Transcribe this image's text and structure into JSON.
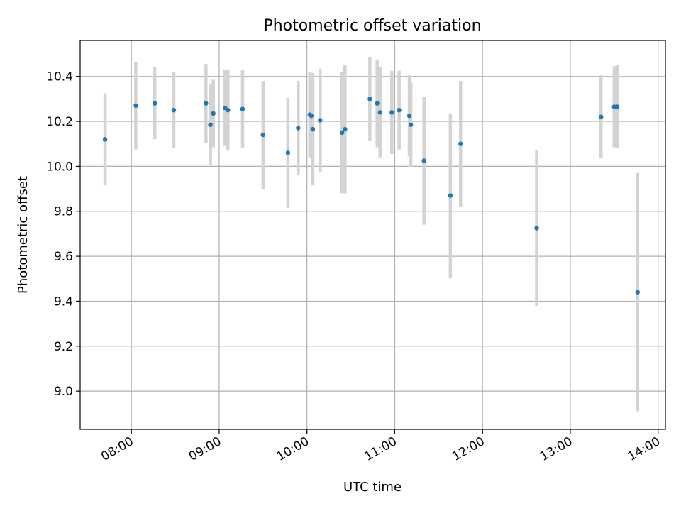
{
  "chart_data": {
    "type": "scatter",
    "title": "Photometric offset variation",
    "xlabel": "UTC time",
    "ylabel": "Photometric offset",
    "x_ticks": [
      "08:00",
      "09:00",
      "10:00",
      "11:00",
      "12:00",
      "13:00",
      "14:00"
    ],
    "y_ticks": [
      "9.0",
      "9.2",
      "9.4",
      "9.6",
      "9.8",
      "10.0",
      "10.2",
      "10.4"
    ],
    "xlim": [
      "07:25",
      "14:05"
    ],
    "ylim": [
      8.83,
      10.56
    ],
    "grid": true,
    "legend": "none",
    "marker_color": "#1f77b4",
    "errorbar_color": "#d3d3d3",
    "points": [
      {
        "x": "07:42",
        "y": 10.12,
        "yerr": 0.205
      },
      {
        "x": "08:03",
        "y": 10.27,
        "yerr": 0.195
      },
      {
        "x": "08:16",
        "y": 10.28,
        "yerr": 0.16
      },
      {
        "x": "08:29",
        "y": 10.25,
        "yerr": 0.17
      },
      {
        "x": "08:51",
        "y": 10.28,
        "yerr": 0.175
      },
      {
        "x": "08:54",
        "y": 10.185,
        "yerr": 0.18
      },
      {
        "x": "08:56",
        "y": 10.235,
        "yerr": 0.15
      },
      {
        "x": "09:04",
        "y": 10.26,
        "yerr": 0.17
      },
      {
        "x": "09:06",
        "y": 10.25,
        "yerr": 0.18
      },
      {
        "x": "09:16",
        "y": 10.255,
        "yerr": 0.175
      },
      {
        "x": "09:30",
        "y": 10.14,
        "yerr": 0.24
      },
      {
        "x": "09:47",
        "y": 10.06,
        "yerr": 0.245
      },
      {
        "x": "09:54",
        "y": 10.17,
        "yerr": 0.21
      },
      {
        "x": "10:02",
        "y": 10.23,
        "yerr": 0.19
      },
      {
        "x": "10:03",
        "y": 10.225,
        "yerr": 0.185
      },
      {
        "x": "10:04",
        "y": 10.165,
        "yerr": 0.25
      },
      {
        "x": "10:09",
        "y": 10.205,
        "yerr": 0.23
      },
      {
        "x": "10:24",
        "y": 10.15,
        "yerr": 0.27
      },
      {
        "x": "10:26",
        "y": 10.165,
        "yerr": 0.285
      },
      {
        "x": "10:43",
        "y": 10.3,
        "yerr": 0.185
      },
      {
        "x": "10:48",
        "y": 10.28,
        "yerr": 0.195
      },
      {
        "x": "10:50",
        "y": 10.24,
        "yerr": 0.2
      },
      {
        "x": "10:58",
        "y": 10.24,
        "yerr": 0.185
      },
      {
        "x": "11:03",
        "y": 10.25,
        "yerr": 0.175
      },
      {
        "x": "11:10",
        "y": 10.225,
        "yerr": 0.18
      },
      {
        "x": "11:11",
        "y": 10.185,
        "yerr": 0.19
      },
      {
        "x": "11:20",
        "y": 10.025,
        "yerr": 0.285
      },
      {
        "x": "11:38",
        "y": 9.87,
        "yerr": 0.365
      },
      {
        "x": "11:45",
        "y": 10.1,
        "yerr": 0.28
      },
      {
        "x": "12:37",
        "y": 9.725,
        "yerr": 0.345
      },
      {
        "x": "13:21",
        "y": 10.22,
        "yerr": 0.185
      },
      {
        "x": "13:30",
        "y": 10.265,
        "yerr": 0.18
      },
      {
        "x": "13:32",
        "y": 10.265,
        "yerr": 0.185
      },
      {
        "x": "13:46",
        "y": 9.44,
        "yerr": 0.53
      }
    ]
  }
}
